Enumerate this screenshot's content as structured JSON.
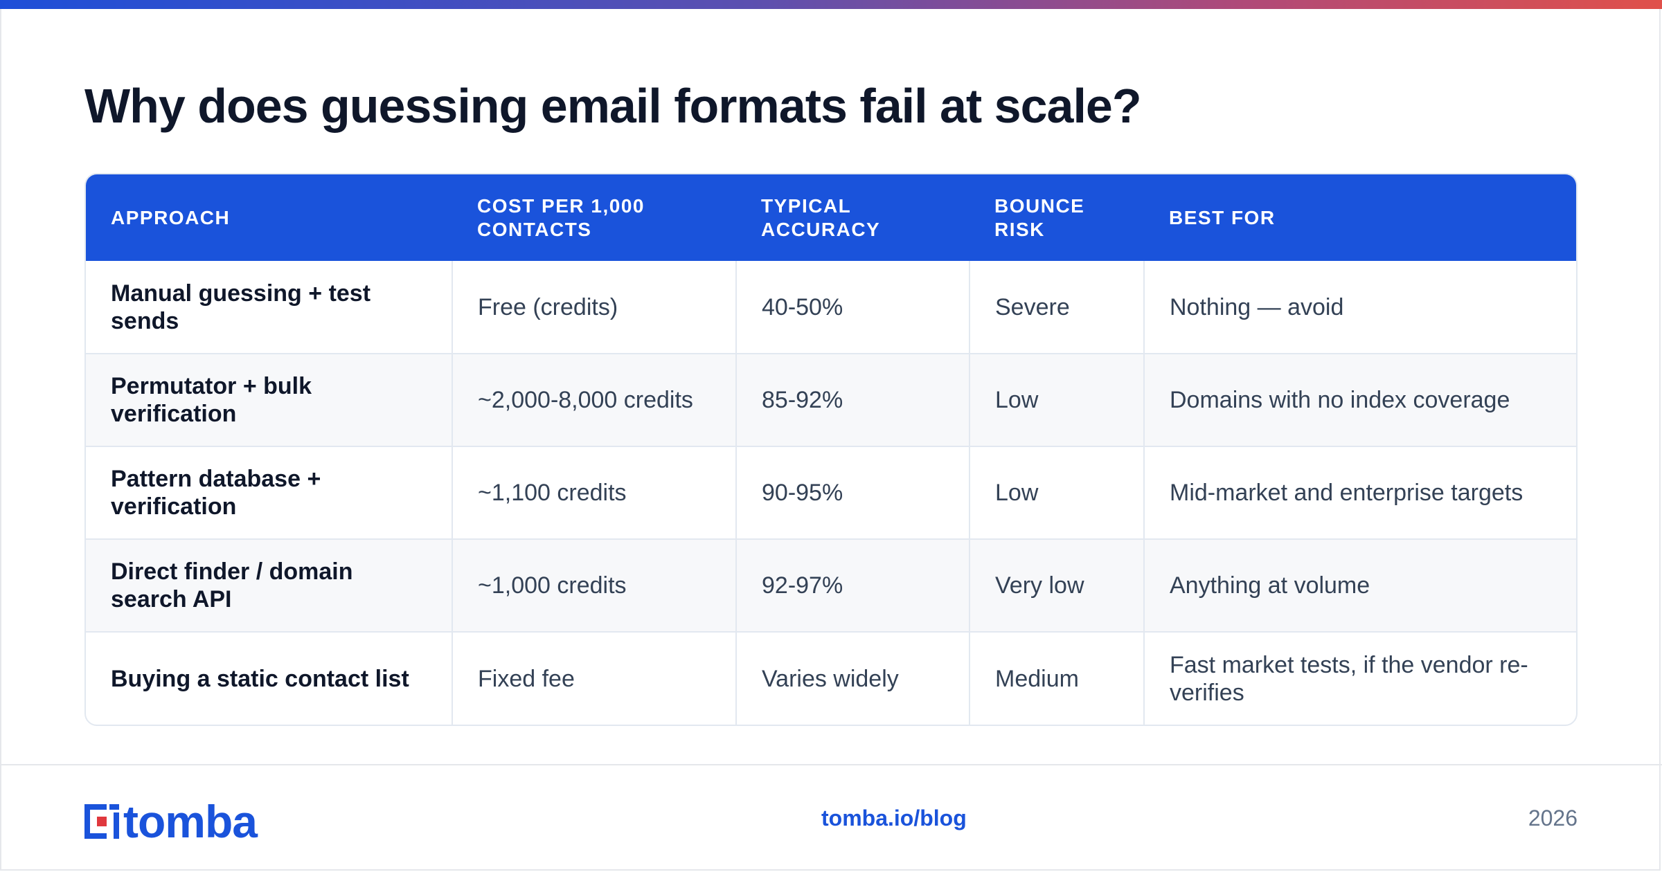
{
  "title": "Why does guessing email formats fail at scale?",
  "table": {
    "headers": [
      {
        "line1": "APPROACH",
        "line2": ""
      },
      {
        "line1": "COST PER 1,000",
        "line2": "CONTACTS"
      },
      {
        "line1": "TYPICAL",
        "line2": "ACCURACY"
      },
      {
        "line1": "BOUNCE",
        "line2": "RISK"
      },
      {
        "line1": "BEST FOR",
        "line2": ""
      }
    ],
    "rows": [
      {
        "approach": "Manual guessing + test sends",
        "cost": "Free (credits)",
        "accuracy": "40-50%",
        "risk": "Severe",
        "best_for": "Nothing — avoid"
      },
      {
        "approach": "Permutator + bulk verification",
        "cost": "~2,000-8,000 credits",
        "accuracy": "85-92%",
        "risk": "Low",
        "best_for": "Domains with no index coverage"
      },
      {
        "approach": "Pattern database + verification",
        "cost": "~1,100 credits",
        "accuracy": "90-95%",
        "risk": "Low",
        "best_for": "Mid-market and enterprise targets"
      },
      {
        "approach": "Direct finder / domain search API",
        "cost": "~1,000 credits",
        "accuracy": "92-97%",
        "risk": "Very low",
        "best_for": "Anything at volume"
      },
      {
        "approach": "Buying a static contact list",
        "cost": "Fixed fee",
        "accuracy": "Varies widely",
        "risk": "Medium",
        "best_for": "Fast market tests, if the vendor re-verifies"
      }
    ]
  },
  "footer": {
    "logo_text": "tomba",
    "link": "tomba.io/blog",
    "year": "2026"
  },
  "colors": {
    "accent": "#1a53db",
    "heading": "#0f172a",
    "body_text": "#334155",
    "muted": "#64748b"
  },
  "icons": {
    "logo": "tomba-logo-icon"
  }
}
